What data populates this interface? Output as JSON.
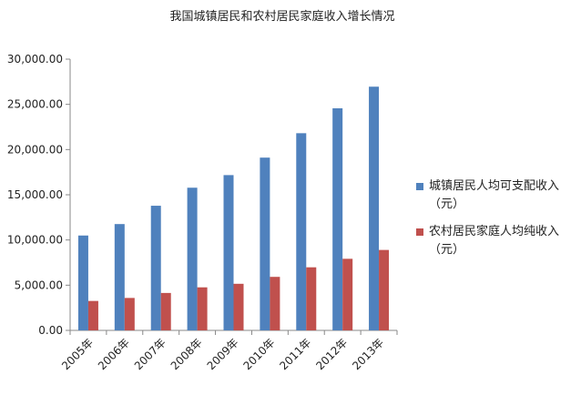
{
  "chart_data": {
    "type": "bar",
    "title": "我国城镇居民和农村居民家庭收入增长情况",
    "categories": [
      "2005年",
      "2006年",
      "2007年",
      "2008年",
      "2009年",
      "2010年",
      "2011年",
      "2012年",
      "2013年"
    ],
    "series": [
      {
        "name": "城镇居民人均可支配收入（元）",
        "name_line1": "城镇居民人均可支配收入",
        "name_line2": "（元）",
        "color": "#4f81bd",
        "values": [
          10493,
          11759,
          13786,
          15781,
          17175,
          19109,
          21810,
          24565,
          26955
        ]
      },
      {
        "name": "农村居民家庭人均纯收入（元）",
        "name_line1": "农村居民家庭人均纯收入",
        "name_line2": "（元）",
        "color": "#c0504d",
        "values": [
          3255,
          3587,
          4140,
          4761,
          5153,
          5919,
          6977,
          7917,
          8896
        ]
      }
    ],
    "yticks": [
      "0.00",
      "5,000.00",
      "10,000.00",
      "15,000.00",
      "20,000.00",
      "25,000.00",
      "30,000.00"
    ],
    "ylim": [
      0,
      30000
    ],
    "xlabel": "",
    "ylabel": "",
    "grid": false,
    "legend_position": "right"
  }
}
